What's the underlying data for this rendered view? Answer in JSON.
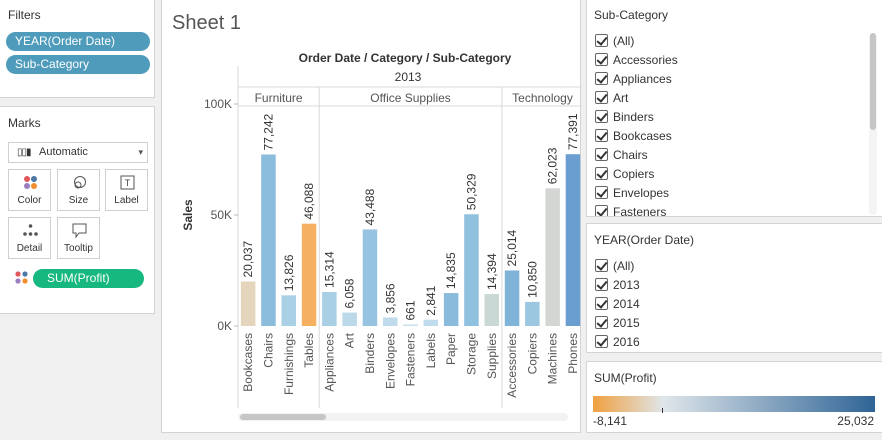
{
  "filters": {
    "title": "Filters",
    "items": [
      "YEAR(Order Date)",
      "Sub-Category"
    ]
  },
  "marks": {
    "title": "Marks",
    "type_select": "Automatic",
    "cards": [
      {
        "label": "Color",
        "icon": "color-icon"
      },
      {
        "label": "Size",
        "icon": "size-icon"
      },
      {
        "label": "Label",
        "icon": "label-icon"
      },
      {
        "label": "Detail",
        "icon": "detail-icon"
      },
      {
        "label": "Tooltip",
        "icon": "tooltip-icon"
      }
    ],
    "field": "SUM(Profit)"
  },
  "sheet": {
    "title": "Sheet 1"
  },
  "chart_data": {
    "type": "bar",
    "title": "Order Date / Category / Sub-Category",
    "year": "2013",
    "ylabel": "Sales",
    "ylim": [
      0,
      100000
    ],
    "y_ticks": [
      {
        "value": 0,
        "label": "0K"
      },
      {
        "value": 50000,
        "label": "50K"
      },
      {
        "value": 100000,
        "label": "100K"
      }
    ],
    "categories": [
      {
        "name": "Furniture",
        "bars": [
          {
            "sub": "Bookcases",
            "value": 20037,
            "label": "20,037",
            "color": "#e5d5bd"
          },
          {
            "sub": "Chairs",
            "value": 77242,
            "label": "77,242",
            "color": "#8bbcdc"
          },
          {
            "sub": "Furnishings",
            "value": 13826,
            "label": "13,826",
            "color": "#aad0e6"
          },
          {
            "sub": "Tables",
            "value": 46088,
            "label": "46,088",
            "color": "#f5b161"
          }
        ]
      },
      {
        "name": "Office Supplies",
        "bars": [
          {
            "sub": "Appliances",
            "value": 15314,
            "label": "15,314",
            "color": "#a9cfe5"
          },
          {
            "sub": "Art",
            "value": 6058,
            "label": "6,058",
            "color": "#bcd9ea"
          },
          {
            "sub": "Binders",
            "value": 43488,
            "label": "43,488",
            "color": "#95c3e0"
          },
          {
            "sub": "Envelopes",
            "value": 3856,
            "label": "3,856",
            "color": "#c0dbeb"
          },
          {
            "sub": "Fasteners",
            "value": 661,
            "label": "661",
            "color": "#c8dfe9"
          },
          {
            "sub": "Labels",
            "value": 2841,
            "label": "2,841",
            "color": "#c0dbeb"
          },
          {
            "sub": "Paper",
            "value": 14835,
            "label": "14,835",
            "color": "#8abbdc"
          },
          {
            "sub": "Storage",
            "value": 50329,
            "label": "50,329",
            "color": "#8fc0de"
          },
          {
            "sub": "Supplies",
            "value": 14394,
            "label": "14,394",
            "color": "#c9d7d5"
          }
        ]
      },
      {
        "name": "Technology",
        "bars": [
          {
            "sub": "Accessories",
            "value": 25014,
            "label": "25,014",
            "color": "#7fb3d8"
          },
          {
            "sub": "Copiers",
            "value": 10850,
            "label": "10,850",
            "color": "#9cc7e1"
          },
          {
            "sub": "Machines",
            "value": 62023,
            "label": "62,023",
            "color": "#d3d6d3"
          },
          {
            "sub": "Phones",
            "value": 77391,
            "label": "77,391",
            "color": "#6a9ed0"
          }
        ]
      }
    ]
  },
  "subcategory_filter": {
    "title": "Sub-Category",
    "items": [
      "(All)",
      "Accessories",
      "Appliances",
      "Art",
      "Binders",
      "Bookcases",
      "Chairs",
      "Copiers",
      "Envelopes",
      "Fasteners"
    ]
  },
  "year_filter": {
    "title": "YEAR(Order Date)",
    "items": [
      "(All)",
      "2013",
      "2014",
      "2015",
      "2016"
    ]
  },
  "profit_legend": {
    "title": "SUM(Profit)",
    "min_label": "-8,141",
    "max_label": "25,032",
    "colors": {
      "low": "#f0a040",
      "mid": "#dfe6ea",
      "high": "#2f6496"
    }
  }
}
